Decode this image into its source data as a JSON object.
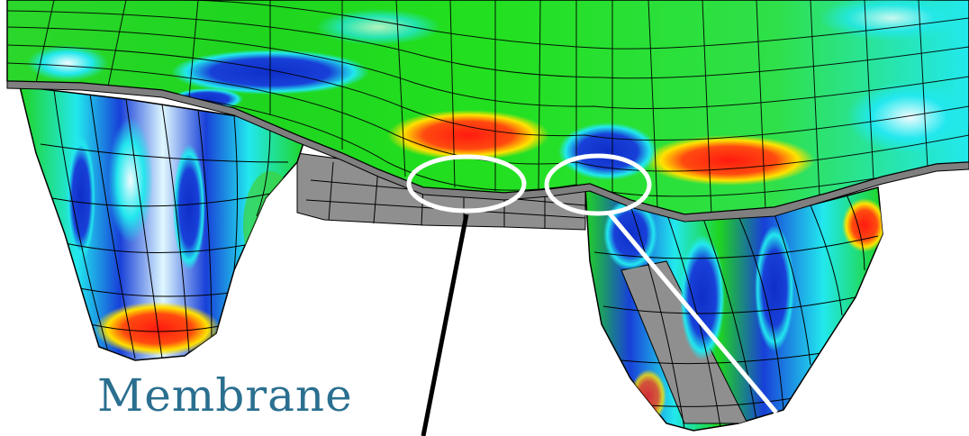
{
  "labels": {
    "membrane": "Membrane"
  },
  "colors": {
    "label_text": "#2a6f8f",
    "mesh_line": "#000000",
    "callout_ellipse": "#ffffff",
    "leader_dark": "#000000",
    "leader_light": "#ffffff",
    "cut_face": "#8f8f8f",
    "contour_green": "#1fd51f",
    "contour_cyan": "#22e8ee",
    "contour_blue": "#1840d8",
    "contour_red": "#ff1a10",
    "contour_yellow": "#ffe200"
  }
}
